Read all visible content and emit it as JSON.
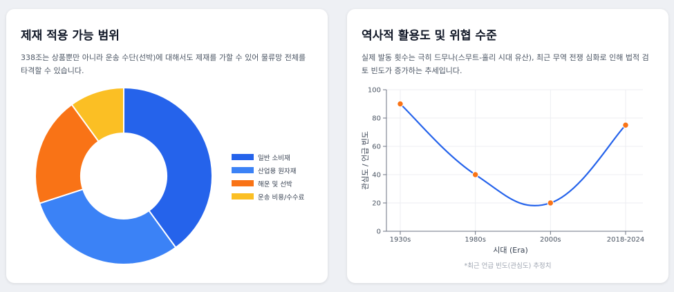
{
  "left_card": {
    "title": "제재 적용 가능 범위",
    "description": "338조는 상품뿐만 아니라 운송 수단(선박)에 대해서도 제재를 가할 수 있어 물류망 전체를 타격할 수 있습니다."
  },
  "right_card": {
    "title": "역사적 활용도 및 위협 수준",
    "description": "실제 발동 횟수는 극히 드무나(스무트-홀리 시대 유산), 최근 무역 전쟁 심화로 인해 법적 검토 빈도가 증가하는 추세입니다.",
    "note": "*최근 언급 빈도(관심도) 추정치"
  },
  "chart_data": [
    {
      "type": "pie",
      "subtype": "doughnut",
      "title": "제재 적용 가능 범위",
      "labels": [
        "일반 소비재",
        "산업용 원자재",
        "해운 및 선박",
        "운송 비용/수수료"
      ],
      "values": [
        40,
        30,
        20,
        10
      ],
      "colors": [
        "#2563eb",
        "#3b82f6",
        "#f97316",
        "#fbbf24"
      ],
      "legend_position": "right"
    },
    {
      "type": "line",
      "title": "역사적 활용도 및 위협 수준",
      "categories": [
        "1930s",
        "1980s",
        "2000s",
        "2018-2024"
      ],
      "series": [
        {
          "name": "관심도 / 언급 빈도",
          "values": [
            90,
            40,
            20,
            75
          ],
          "color": "#2563eb",
          "point_color": "#f97316"
        }
      ],
      "xlabel": "시대 (Era)",
      "ylabel": "관심도 / 언급 빈도",
      "ylim": [
        0,
        100
      ],
      "yticks": [
        "0",
        "20",
        "40",
        "60",
        "80",
        "100"
      ],
      "grid": true
    }
  ]
}
